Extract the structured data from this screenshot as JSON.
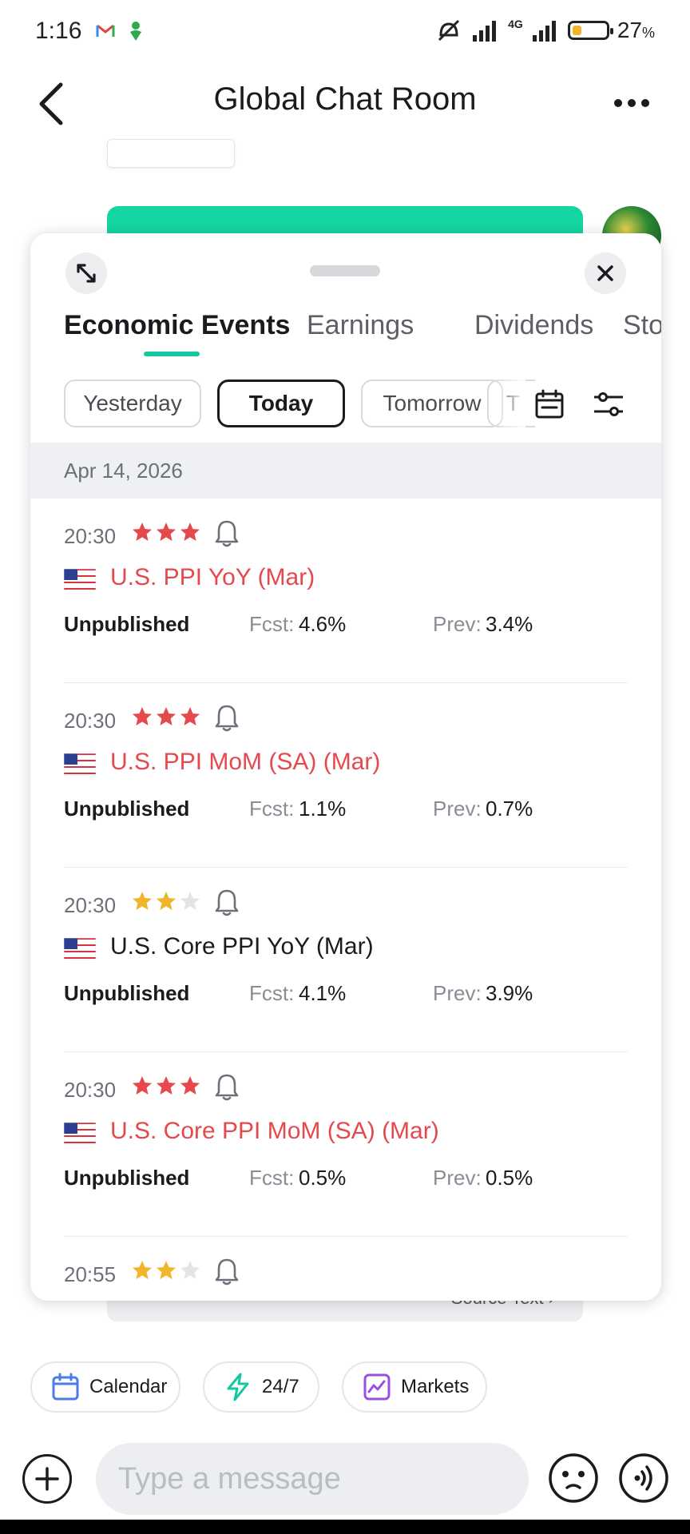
{
  "status_bar": {
    "time": "1:16",
    "network": "4G",
    "battery_percent": "27",
    "battery_percent_sign": "%",
    "battery_level": 0.27,
    "icons": [
      "gmail-icon",
      "app-notification-icon",
      "mute-icon",
      "signal-icon",
      "signal-4g-icon",
      "battery-icon"
    ]
  },
  "header": {
    "title": "Global Chat Room",
    "back_icon": "chevron-left-icon",
    "more_icon": "more-horizontal-icon"
  },
  "background": {
    "source_text_label": "Source Text ›"
  },
  "panel": {
    "tabs": [
      {
        "label": "Economic Events",
        "active": true
      },
      {
        "label": "Earnings",
        "active": false
      },
      {
        "label": "Dividends",
        "active": false
      },
      {
        "label": "Stock",
        "active": false
      }
    ],
    "day_filters": [
      {
        "label": "Yesterday",
        "active": false
      },
      {
        "label": "Today",
        "active": true
      },
      {
        "label": "Tomorrow",
        "active": false
      },
      {
        "label": "T",
        "active": false
      }
    ],
    "date": "Apr 14, 2026",
    "fcst_label": "Fcst:",
    "prev_label": "Prev:",
    "events": [
      {
        "time": "20:30",
        "importance": 3,
        "country": "US",
        "title": "U.S. PPI YoY (Mar)",
        "high": true,
        "status": "Unpublished",
        "fcst": "4.6%",
        "prev": "3.4%"
      },
      {
        "time": "20:30",
        "importance": 3,
        "country": "US",
        "title": "U.S. PPI MoM (SA) (Mar)",
        "high": true,
        "status": "Unpublished",
        "fcst": "1.1%",
        "prev": "0.7%"
      },
      {
        "time": "20:30",
        "importance": 2,
        "country": "US",
        "title": "U.S. Core PPI YoY (Mar)",
        "high": false,
        "status": "Unpublished",
        "fcst": "4.1%",
        "prev": "3.9%"
      },
      {
        "time": "20:30",
        "importance": 3,
        "country": "US",
        "title": "U.S. Core PPI MoM (SA) (Mar)",
        "high": true,
        "status": "Unpublished",
        "fcst": "0.5%",
        "prev": "0.5%"
      },
      {
        "time": "20:55",
        "importance": 2
      }
    ]
  },
  "quick_actions": [
    {
      "label": "Calendar",
      "icon": "calendar-icon"
    },
    {
      "label": "24/7",
      "icon": "lightning-icon"
    },
    {
      "label": "Markets",
      "icon": "markets-chart-icon"
    }
  ],
  "composer": {
    "placeholder": "Type a message"
  },
  "colors": {
    "accent": "#14c79e",
    "high_importance": "#e5484d",
    "medium_star": "#f1b52b",
    "empty_star": "#e3e4e7"
  }
}
